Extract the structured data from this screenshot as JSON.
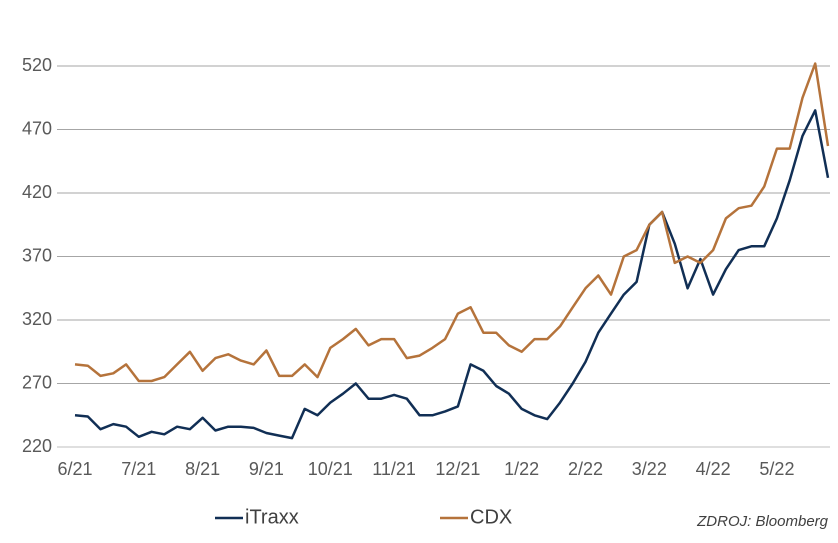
{
  "chart_data": {
    "type": "line",
    "categories": [
      "6/21",
      null,
      null,
      null,
      null,
      "7/21",
      null,
      null,
      null,
      null,
      "8/21",
      null,
      null,
      null,
      null,
      "9/21",
      null,
      null,
      null,
      null,
      "10/21",
      null,
      null,
      null,
      null,
      "11/21",
      null,
      null,
      null,
      null,
      "12/21",
      null,
      null,
      null,
      null,
      "1/22",
      null,
      null,
      null,
      null,
      "2/22",
      null,
      null,
      null,
      null,
      "3/22",
      null,
      null,
      null,
      null,
      "4/22",
      null,
      null,
      null,
      null,
      "5/22",
      null,
      null,
      null,
      null
    ],
    "series": [
      {
        "name": "iTraxx",
        "color": "#112f55",
        "values": [
          245,
          244,
          234,
          238,
          236,
          228,
          232,
          230,
          236,
          234,
          243,
          233,
          236,
          236,
          235,
          231,
          229,
          227,
          250,
          245,
          255,
          262,
          270,
          258,
          258,
          261,
          258,
          245,
          245,
          248,
          252,
          285,
          280,
          268,
          262,
          250,
          245,
          242,
          255,
          270,
          287,
          310,
          325,
          340,
          350,
          395,
          405,
          380,
          345,
          368,
          340,
          360,
          375,
          378,
          378,
          400,
          430,
          465,
          485,
          432
        ]
      },
      {
        "name": "CDX",
        "color": "#b5733b",
        "values": [
          285,
          284,
          276,
          278,
          285,
          272,
          272,
          275,
          285,
          295,
          280,
          290,
          293,
          288,
          285,
          296,
          276,
          276,
          285,
          275,
          298,
          305,
          313,
          300,
          305,
          305,
          290,
          292,
          298,
          305,
          325,
          330,
          310,
          310,
          300,
          295,
          305,
          305,
          315,
          330,
          345,
          355,
          340,
          370,
          375,
          395,
          405,
          365,
          370,
          365,
          375,
          400,
          408,
          410,
          425,
          455,
          455,
          495,
          522,
          457
        ]
      }
    ],
    "ylim": [
      220,
      520
    ],
    "yticks": [
      220,
      270,
      320,
      370,
      420,
      470,
      520
    ],
    "grid": true,
    "legend": "bottom",
    "source": "ZDROJ: Bloomberg"
  }
}
